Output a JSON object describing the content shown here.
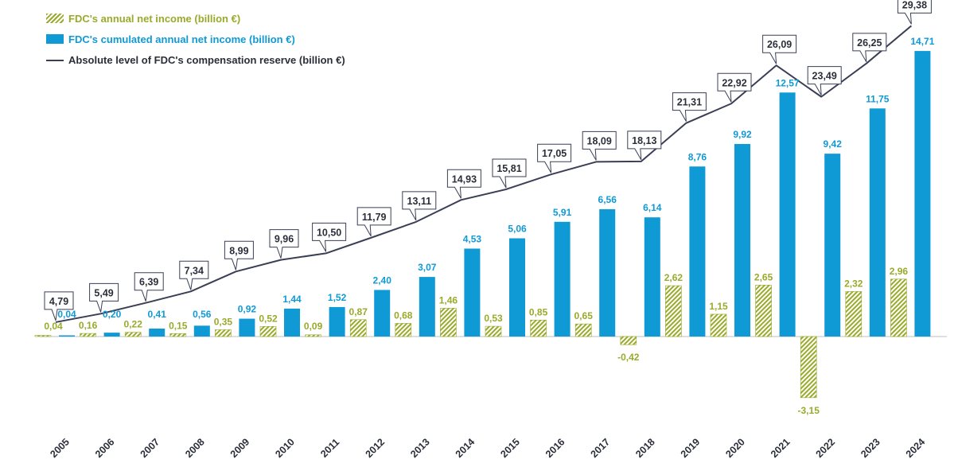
{
  "chart_data": {
    "type": "bar",
    "categories": [
      "2005",
      "2006",
      "2007",
      "2008",
      "2009",
      "2010",
      "2011",
      "2012",
      "2013",
      "2014",
      "2015",
      "2016",
      "2017",
      "2018",
      "2019",
      "2020",
      "2021",
      "2022",
      "2023",
      "2024"
    ],
    "series": [
      {
        "name": "FDC's annual net income (billion €)",
        "kind": "bar-hatched",
        "color": "#9aaa2a",
        "values": [
          0.04,
          0.16,
          0.22,
          0.15,
          0.35,
          0.52,
          0.09,
          0.87,
          0.68,
          1.46,
          0.53,
          0.85,
          0.65,
          -0.42,
          2.62,
          1.15,
          2.65,
          -3.15,
          2.32,
          2.96
        ],
        "labels": [
          "0,04",
          "0,16",
          "0,22",
          "0,15",
          "0,35",
          "0,52",
          "0,09",
          "0,87",
          "0,68",
          "1,46",
          "0,53",
          "0,85",
          "0,65",
          "-0,42",
          "2,62",
          "1,15",
          "2,65",
          "-3,15",
          "2,32",
          "2,96"
        ]
      },
      {
        "name": "FDC's cumulated annual net income (billion €)",
        "kind": "bar",
        "color": "#0f9ad6",
        "values": [
          0.04,
          0.2,
          0.41,
          0.56,
          0.92,
          1.44,
          1.52,
          2.4,
          3.07,
          4.53,
          5.06,
          5.91,
          6.56,
          6.14,
          8.76,
          9.92,
          12.57,
          9.42,
          11.75,
          14.71
        ],
        "labels": [
          "0,04",
          "0,20",
          "0,41",
          "0,56",
          "0,92",
          "1,44",
          "1,52",
          "2,40",
          "3,07",
          "4,53",
          "5,06",
          "5,91",
          "6,56",
          "6,14",
          "8,76",
          "9,92",
          "12,57",
          "9,42",
          "11,75",
          "14,71"
        ]
      },
      {
        "name": "Absolute level of FDC's compensation reserve (billion €)",
        "kind": "line",
        "color": "#3a3f55",
        "values": [
          4.79,
          5.49,
          6.39,
          7.34,
          8.99,
          9.96,
          10.5,
          11.79,
          13.11,
          14.93,
          15.81,
          17.05,
          18.09,
          18.13,
          21.31,
          22.92,
          26.09,
          23.49,
          26.25,
          29.38
        ],
        "labels": [
          "4,79",
          "5,49",
          "6,39",
          "7,34",
          "8,99",
          "9,96",
          "10,50",
          "11,79",
          "13,11",
          "14,93",
          "15,81",
          "17,05",
          "18,09",
          "18,13",
          "21,31",
          "22,92",
          "26,09",
          "23,49",
          "26,25",
          "29,38"
        ]
      }
    ],
    "title": "",
    "xlabel": "",
    "ylabel": "",
    "grid": false,
    "legend_position": "top-left",
    "axes_shown": false
  }
}
